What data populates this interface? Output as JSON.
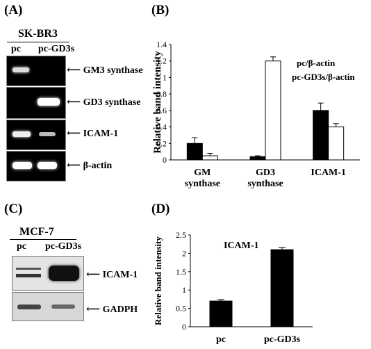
{
  "panel_a": {
    "label": "(A)",
    "cell_line": "SK-BR3",
    "lanes": [
      "pc",
      "pc-GD3s"
    ],
    "bands": [
      "GM3 synthase",
      "GD3 synthase",
      "ICAM-1",
      "β-actin"
    ]
  },
  "panel_b": {
    "label": "(B)"
  },
  "panel_c": {
    "label": "(C)",
    "cell_line": "MCF-7",
    "lanes": [
      "pc",
      "pc-GD3s"
    ],
    "bands": [
      "ICAM-1",
      "GADPH"
    ]
  },
  "panel_d": {
    "label": "(D)"
  },
  "chart_data": [
    {
      "type": "bar",
      "panel": "(B)",
      "categories": [
        "GM\nsynthase",
        "GD3\nsynthase",
        "ICAM-1"
      ],
      "series": [
        {
          "name": "pc/β-actin",
          "values": [
            0.2,
            0.04,
            0.6
          ],
          "errors": [
            0.07,
            0.01,
            0.09
          ],
          "color": "#000000"
        },
        {
          "name": "pc-GD3s/β-actin",
          "values": [
            0.05,
            1.2,
            0.4
          ],
          "errors": [
            0.03,
            0.05,
            0.04
          ],
          "color": "#ffffff"
        }
      ],
      "ylabel": "Relative band intensity",
      "ylim": [
        0,
        1.4
      ],
      "yticks": [
        "0",
        "0.2",
        "0.4",
        "0.6",
        "0.8",
        "1",
        "1.2",
        "1.4"
      ],
      "legend": "top-right"
    },
    {
      "type": "bar",
      "panel": "(D)",
      "title": "ICAM-1",
      "categories": [
        "pc",
        "pc-GD3s"
      ],
      "values": [
        0.7,
        2.1
      ],
      "errors": [
        0.04,
        0.06
      ],
      "ylabel": "Relative band intensity",
      "ylim": [
        0,
        2.5
      ],
      "yticks": [
        "0",
        "0.5",
        "1",
        "1.5",
        "2",
        "2.5"
      ]
    }
  ]
}
